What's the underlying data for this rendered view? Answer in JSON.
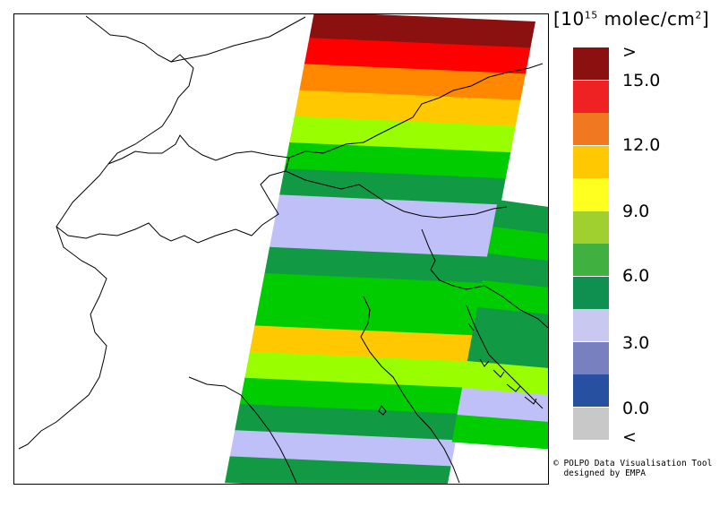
{
  "unit": {
    "prefix": "[10",
    "exp": "15",
    "suffix": " molec/cm",
    "sq": "2",
    "close": "]"
  },
  "legend": {
    "bins": [
      {
        "range": "> 15.0",
        "color": "#8b1010"
      },
      {
        "range": "13.5–15.0",
        "color": "#ee2222"
      },
      {
        "range": "12.0–13.5",
        "color": "#f07820"
      },
      {
        "range": "10.5–12.0",
        "color": "#ffc800"
      },
      {
        "range": "9.0–10.5",
        "color": "#ffff20"
      },
      {
        "range": "7.5–9.0",
        "color": "#a0d030"
      },
      {
        "range": "6.0–7.5",
        "color": "#40b040"
      },
      {
        "range": "4.5–6.0",
        "color": "#109050"
      },
      {
        "range": "3.0–4.5",
        "color": "#c8c8f0"
      },
      {
        "range": "1.5–3.0",
        "color": "#7880c0"
      },
      {
        "range": "0.0–1.5",
        "color": "#2850a0"
      },
      {
        "range": "< 0.0",
        "color": "#c8c8c8"
      }
    ],
    "ticks": [
      ">",
      "15.0",
      "12.0",
      "9.0",
      "6.0",
      "3.0",
      "0.0",
      "<"
    ]
  },
  "credit": {
    "line1": "© POLPO Data Visualisation Tool",
    "line2": "designed by EMPA"
  },
  "swath": {
    "rows": [
      {
        "color": "#8b1010",
        "value": "> 15.0"
      },
      {
        "color": "#ff0000",
        "value": "13.5–15.0"
      },
      {
        "color": "#ff8800",
        "value": "12.0–13.5"
      },
      {
        "color": "#ffc800",
        "value": "10.5–12.0"
      },
      {
        "color": "#99ff00",
        "value": "7.5–9.0"
      },
      {
        "color": "#00cc00",
        "value": "6.0–7.5"
      },
      {
        "color": "#119944",
        "value": "4.5–6.0"
      },
      {
        "color": "#c0c0f8",
        "value": "3.0–4.5"
      },
      {
        "color": "#c0c0f8",
        "value": "3.0–4.5"
      },
      {
        "color": "#119944",
        "value": "4.5–6.0"
      },
      {
        "color": "#00cc00",
        "value": "6.0–7.5"
      },
      {
        "color": "#00cc00",
        "value": "6.0–7.5"
      },
      {
        "color": "#ffc800",
        "value": "10.5–12.0"
      },
      {
        "color": "#99ff00",
        "value": "7.5–9.0"
      },
      {
        "color": "#00cc00",
        "value": "6.0–7.5"
      },
      {
        "color": "#119944",
        "value": "4.5–6.0"
      },
      {
        "color": "#c0c0f8",
        "value": "3.0–4.5"
      },
      {
        "color": "#119944",
        "value": "4.5–6.0"
      }
    ],
    "east_rows": [
      {
        "color": "#119944",
        "value": "4.5–6.0"
      },
      {
        "color": "#00cc00",
        "value": "6.0–7.5"
      },
      {
        "color": "#119944",
        "value": "4.5–6.0"
      },
      {
        "color": "#00cc00",
        "value": "6.0–7.5"
      },
      {
        "color": "#119944",
        "value": "4.5–6.0"
      },
      {
        "color": "#119944",
        "value": "4.5–6.0"
      },
      {
        "color": "#99ff00",
        "value": "7.5–9.0"
      },
      {
        "color": "#c0c0f8",
        "value": "3.0–4.5"
      },
      {
        "color": "#00cc00",
        "value": "6.0–7.5"
      }
    ]
  }
}
